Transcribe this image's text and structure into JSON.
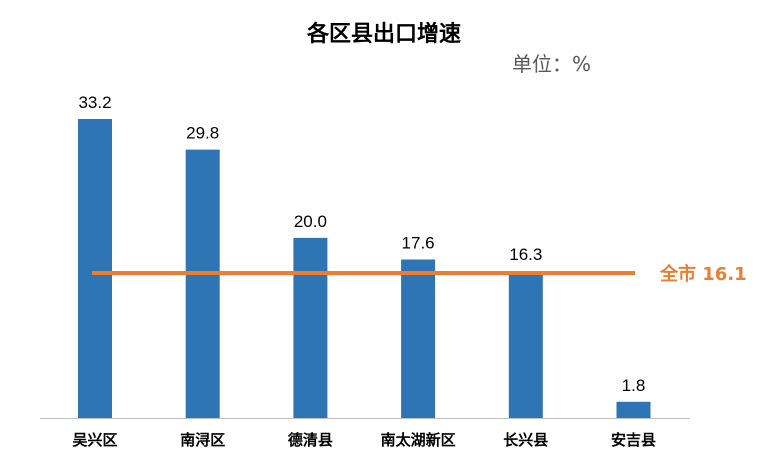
{
  "chart_data": {
    "type": "bar",
    "title": "各区县出口增速",
    "unit_label": "单位：%",
    "categories": [
      "吴兴区",
      "南浔区",
      "德清县",
      "南太湖新区",
      "长兴县",
      "安吉县"
    ],
    "values": [
      33.2,
      29.8,
      20.0,
      17.6,
      16.3,
      1.8
    ],
    "value_labels": [
      "33.2",
      "29.8",
      "20.0",
      "17.6",
      "16.3",
      "1.8"
    ],
    "reference_line": {
      "label": "全市 16.1",
      "value": 16.1
    },
    "ylim": [
      0,
      33.2
    ],
    "grid": false,
    "legend": "none",
    "colors": {
      "bar": "#2E75B6",
      "reference": "#ED7D31",
      "axis": "#BFBFBF"
    }
  }
}
